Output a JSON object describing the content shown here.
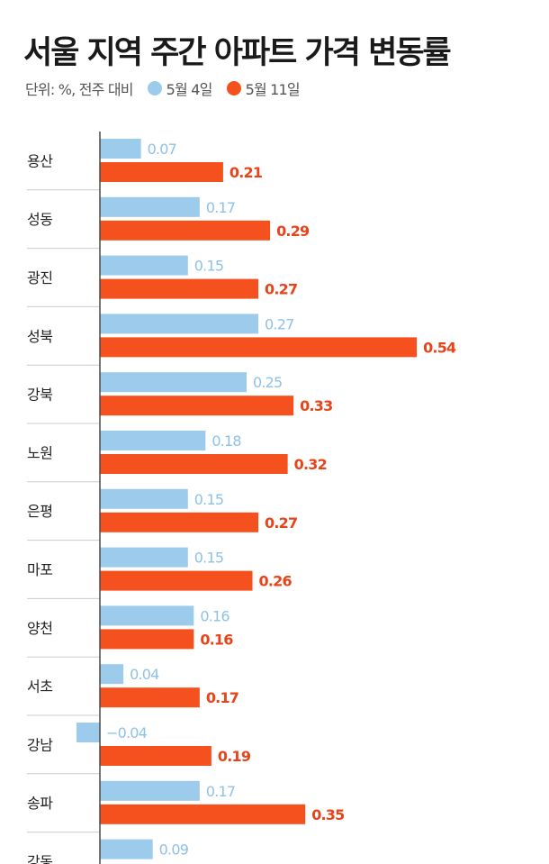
{
  "title": "서울 지역 주간 아파트 가격 변동률",
  "subtitle": "단위: %, 전주 대비",
  "colors": {
    "series_a": "#9dcbec",
    "series_b": "#f4511e",
    "axis": "#4a4a4a",
    "divider": "#cccccc"
  },
  "chart_data": {
    "type": "bar",
    "orientation": "horizontal",
    "title": "서울 지역 주간 아파트 가격 변동률",
    "unit_note": "단위: %, 전주 대비",
    "categories": [
      "용산",
      "성동",
      "광진",
      "성북",
      "강북",
      "노원",
      "은평",
      "마포",
      "양천",
      "서초",
      "강남",
      "송파",
      "강동"
    ],
    "series": [
      {
        "name": "5월 4일",
        "values": [
          0.07,
          0.17,
          0.15,
          0.27,
          0.25,
          0.18,
          0.15,
          0.15,
          0.16,
          0.04,
          -0.04,
          0.17,
          0.09
        ],
        "labels": [
          "0.07",
          "0.17",
          "0.15",
          "0.27",
          "0.25",
          "0.18",
          "0.15",
          "0.15",
          "0.16",
          "0.04",
          "−0.04",
          "0.17",
          "0.09"
        ]
      },
      {
        "name": "5월 11일",
        "values": [
          0.21,
          0.29,
          0.27,
          0.54,
          0.33,
          0.32,
          0.27,
          0.26,
          0.16,
          0.17,
          0.19,
          0.35,
          null
        ],
        "labels": [
          "0.21",
          "0.29",
          "0.27",
          "0.54",
          "0.33",
          "0.32",
          "0.27",
          "0.26",
          "0.16",
          "0.17",
          "0.19",
          "0.35",
          ""
        ]
      }
    ],
    "legend_position": "top",
    "grid": false
  }
}
